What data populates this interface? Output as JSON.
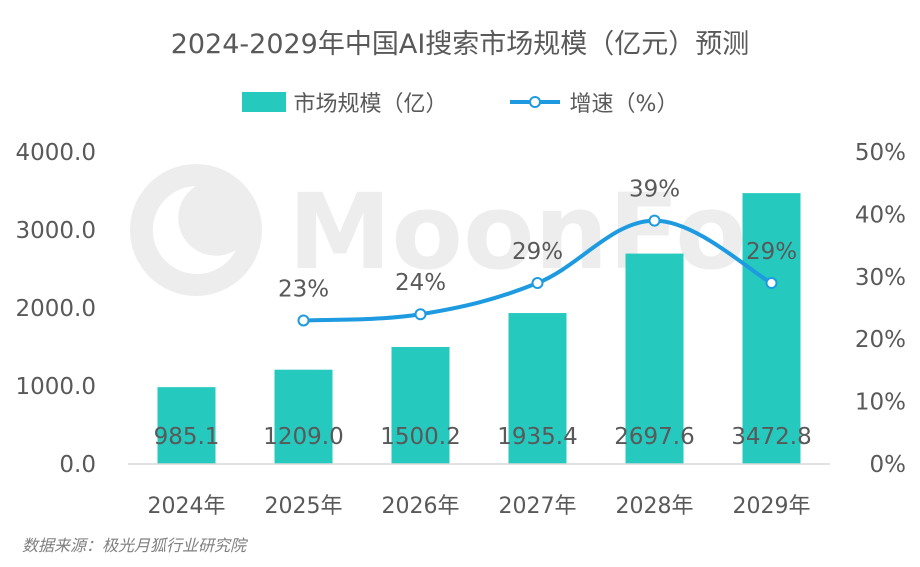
{
  "chart_data": {
    "type": "bar",
    "title": "2024-2029年中国AI搜索市场规模（亿元）预测",
    "categories": [
      "2024年",
      "2025年",
      "2026年",
      "2027年",
      "2028年",
      "2029年"
    ],
    "series": [
      {
        "name": "市场规模（亿）",
        "type": "bar",
        "axis": "left",
        "color": "#26C9BE",
        "values": [
          985.1,
          1209.0,
          1500.2,
          1935.4,
          2697.6,
          3472.8
        ],
        "labels": [
          "985.1",
          "1209.0",
          "1500.2",
          "1935.4",
          "2697.6",
          "3472.8"
        ]
      },
      {
        "name": "增速（%）",
        "type": "line",
        "axis": "right",
        "color": "#1E9BE0",
        "values": [
          null,
          23,
          24,
          29,
          39,
          29
        ],
        "labels": [
          "",
          "23%",
          "24%",
          "29%",
          "39%",
          "29%"
        ]
      }
    ],
    "y_left": {
      "lim": [
        0,
        4000
      ],
      "ticks": [
        0,
        1000,
        2000,
        3000,
        4000
      ],
      "tick_labels": [
        "0.0",
        "1000.0",
        "2000.0",
        "3000.0",
        "4000.0"
      ]
    },
    "y_right": {
      "lim": [
        0,
        50
      ],
      "ticks": [
        0,
        10,
        20,
        30,
        40,
        50
      ],
      "tick_labels": [
        "0%",
        "10%",
        "20%",
        "30%",
        "40%",
        "50%"
      ]
    },
    "grid": false,
    "legend_position": "top-center"
  },
  "source_text": "数据来源：极光月狐行业研究院",
  "watermark_text": "MoonFox"
}
